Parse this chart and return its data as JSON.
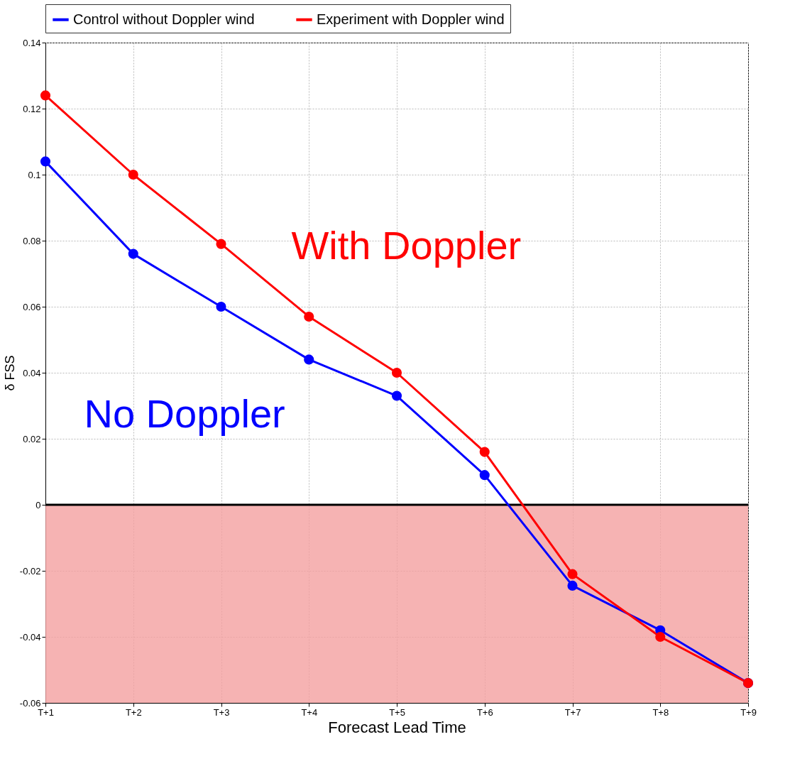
{
  "chart_data": {
    "type": "line",
    "xlabel": "Forecast Lead Time",
    "ylabel": "δ FSS",
    "categories": [
      "T+1",
      "T+2",
      "T+3",
      "T+4",
      "T+5",
      "T+6",
      "T+7",
      "T+8",
      "T+9"
    ],
    "series": [
      {
        "name": "Control without Doppler wind",
        "color": "#0000ff",
        "values": [
          0.104,
          0.076,
          0.06,
          0.044,
          0.033,
          0.009,
          -0.0245,
          -0.038,
          -0.054
        ]
      },
      {
        "name": "Experiment with Doppler wind",
        "color": "#ff0000",
        "values": [
          0.124,
          0.1,
          0.079,
          0.057,
          0.04,
          0.016,
          -0.021,
          -0.04,
          -0.054
        ]
      }
    ],
    "ylim": [
      -0.06,
      0.14
    ],
    "yticks": [
      -0.06,
      -0.04,
      -0.02,
      0,
      0.02,
      0.04,
      0.06,
      0.08,
      0.1,
      0.12,
      0.14
    ],
    "ref_lines": [
      {
        "axis": "y",
        "value": 0,
        "color": "#000000"
      }
    ],
    "bands": [
      {
        "axis": "y",
        "from": -0.06,
        "to": 0,
        "color": "#f4a0a0"
      }
    ],
    "annotations": [
      "With Doppler",
      "No Doppler"
    ],
    "grid": true,
    "legend": "top",
    "marker": "circle",
    "line_style": "solid"
  }
}
